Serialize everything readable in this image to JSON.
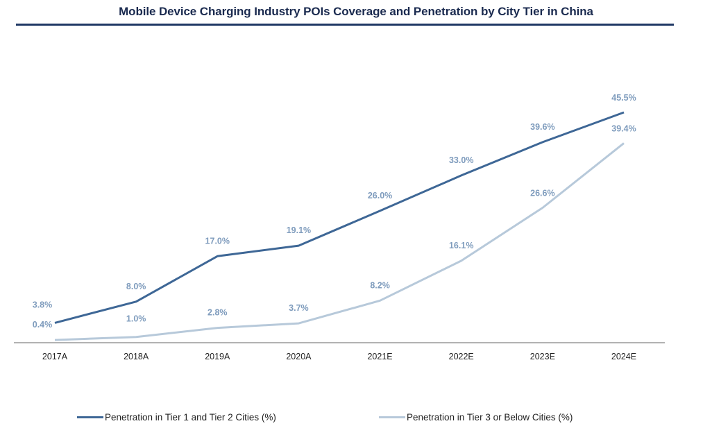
{
  "chart_data": {
    "type": "line",
    "title": "Mobile Device Charging Industry POIs Coverage and Penetration by City Tier in China",
    "xlabel": "",
    "ylabel": "",
    "categories": [
      "2017A",
      "2018A",
      "2019A",
      "2020A",
      "2021E",
      "2022E",
      "2023E",
      "2024E"
    ],
    "series": [
      {
        "name": "Penetration in Tier 1 and Tier 2 Cities (%)",
        "color": "#3e6796",
        "values": [
          3.8,
          8.0,
          17.0,
          19.1,
          26.0,
          33.0,
          39.6,
          45.5
        ],
        "labels": [
          "3.8%",
          "8.0%",
          "17.0%",
          "19.1%",
          "26.0%",
          "33.0%",
          "39.6%",
          "45.5%"
        ]
      },
      {
        "name": "Penetration in Tier 3 or Below  Cities (%)",
        "color": "#b7c9da",
        "values": [
          0.4,
          1.0,
          2.8,
          3.7,
          8.2,
          16.1,
          26.6,
          39.4
        ],
        "labels": [
          "0.4%",
          "1.0%",
          "2.8%",
          "3.7%",
          "8.2%",
          "16.1%",
          "26.6%",
          "39.4%"
        ]
      }
    ],
    "ylim": [
      0,
      45.5
    ],
    "grid": false,
    "legend": "bottom",
    "label_color": "#7f9cbd",
    "axis_color": "#999999"
  }
}
